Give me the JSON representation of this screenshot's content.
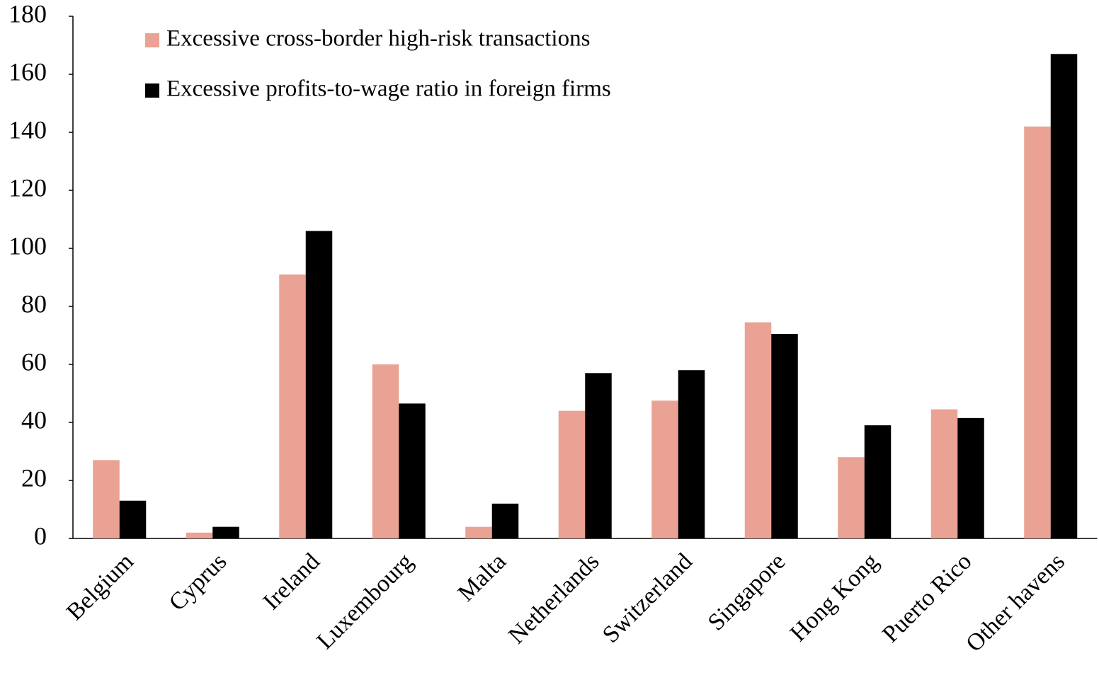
{
  "chart_data": {
    "type": "bar",
    "categories": [
      "Belgium",
      "Cyprus",
      "Ireland",
      "Luxembourg",
      "Malta",
      "Netherlands",
      "Switzerland",
      "Singapore",
      "Hong Kong",
      "Puerto Rico",
      "Other havens"
    ],
    "series": [
      {
        "name": "Excessive cross-border high-risk transactions",
        "color": "#e9a293",
        "values": [
          27,
          2,
          91,
          60,
          4,
          44,
          47.5,
          74.5,
          28,
          44.5,
          142
        ]
      },
      {
        "name": "Excessive profits-to-wage ratio in foreign firms",
        "color": "#000000",
        "values": [
          13,
          4,
          106,
          46.5,
          12,
          57,
          58,
          70.5,
          39,
          41.5,
          167
        ]
      }
    ],
    "ylim": [
      0,
      180
    ],
    "yticks": [
      0,
      20,
      40,
      60,
      80,
      100,
      120,
      140,
      160,
      180
    ],
    "grid": false,
    "legend": "top-left"
  }
}
